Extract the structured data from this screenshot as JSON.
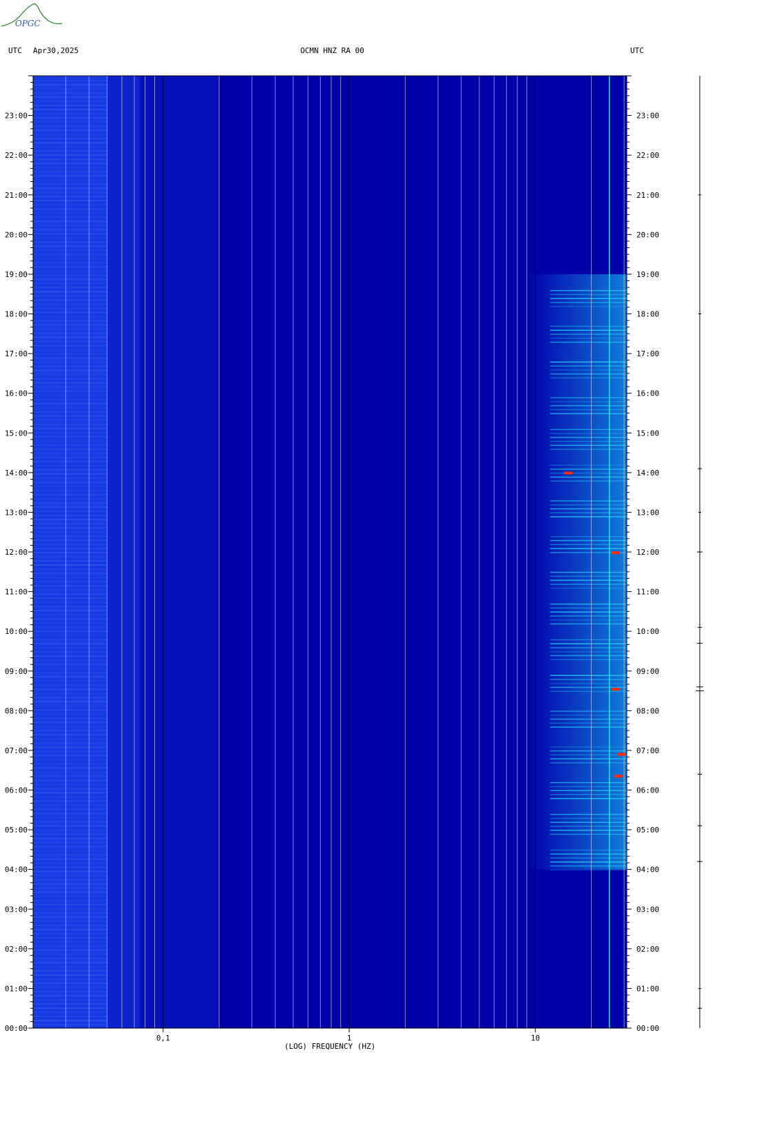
{
  "logo": {
    "text": "OPGC"
  },
  "header": {
    "left_tz": "UTC",
    "date": "Apr30,2025",
    "station": "OCMN HNZ RA 00",
    "right_tz": "UTC"
  },
  "colors": {
    "background": "#0000aa",
    "low_band": "#1b44f0",
    "high_band": "#22e0ff",
    "hot": "#ff2a00",
    "grid": "#c8c8c8",
    "major_grid": "#000000"
  },
  "chart_data": {
    "type": "heatmap",
    "title": "OCMN HNZ RA 00",
    "xlabel": "(LOG) FREQUENCY (HZ)",
    "ylabel": "",
    "x_scale": "log",
    "xlim": [
      0.02,
      31
    ],
    "x_ticks": [
      {
        "value": 0.1,
        "label": "0,1"
      },
      {
        "value": 1,
        "label": "1"
      },
      {
        "value": 10,
        "label": "10"
      }
    ],
    "y_ticks_left": [
      "23:00",
      "22:00",
      "21:00",
      "20:00",
      "19:00",
      "18:00",
      "17:00",
      "16:00",
      "15:00",
      "14:00",
      "13:00",
      "12:00",
      "11:00",
      "10:00",
      "09:00",
      "08:00",
      "07:00",
      "06:00",
      "05:00",
      "04:00",
      "03:00",
      "02:00",
      "01:00",
      "00:00"
    ],
    "y_ticks_right": [
      "23:00",
      "22:00",
      "21:00",
      "20:00",
      "19:00",
      "18:00",
      "17:00",
      "16:00",
      "15:00",
      "14:00",
      "13:00",
      "12:00",
      "11:00",
      "10:00",
      "09:00",
      "08:00",
      "07:00",
      "06:00",
      "05:00",
      "04:00",
      "03:00",
      "02:00",
      "01:00",
      "00:00"
    ],
    "y_range_hours": [
      0,
      24
    ],
    "hot_spots": [
      {
        "hour": 13.99,
        "freq": 15
      },
      {
        "hour": 11.98,
        "freq": 27
      },
      {
        "hour": 8.54,
        "freq": 27
      },
      {
        "hour": 6.35,
        "freq": 28
      },
      {
        "hour": 6.9,
        "freq": 29
      }
    ]
  }
}
